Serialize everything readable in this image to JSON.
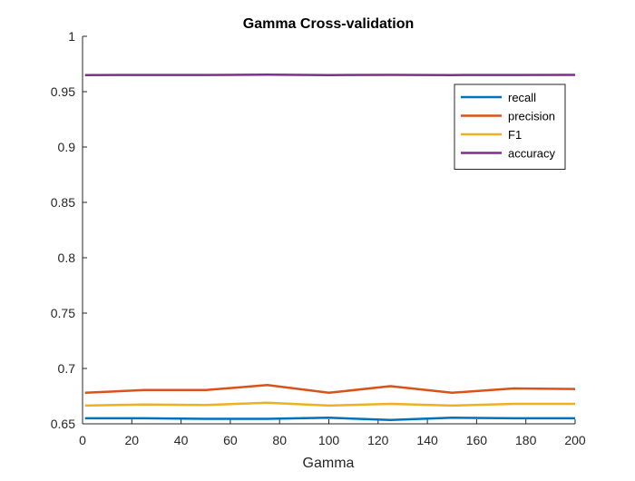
{
  "chart_data": {
    "type": "line",
    "title": "Gamma Cross-validation",
    "xlabel": "Gamma",
    "ylabel": "",
    "xlim": [
      0,
      200
    ],
    "ylim": [
      0.65,
      1
    ],
    "xticks": [
      0,
      20,
      40,
      60,
      80,
      100,
      120,
      140,
      160,
      180,
      200
    ],
    "xtick_labels": [
      "0",
      "20",
      "40",
      "60",
      "80",
      "100",
      "120",
      "140",
      "160",
      "180",
      "200"
    ],
    "yticks": [
      0.65,
      0.7,
      0.75,
      0.8,
      0.85,
      0.9,
      0.95,
      1
    ],
    "ytick_labels": [
      "0.65",
      "0.7",
      "0.75",
      "0.8",
      "0.85",
      "0.9",
      "0.95",
      "1"
    ],
    "grid": false,
    "legend_position": "top-right",
    "x": [
      1,
      25,
      50,
      75,
      100,
      125,
      150,
      175,
      200
    ],
    "series": [
      {
        "name": "recall",
        "color": "#0072BD",
        "values": [
          0.655,
          0.655,
          0.6545,
          0.6545,
          0.6555,
          0.6535,
          0.6555,
          0.655,
          0.655
        ]
      },
      {
        "name": "precision",
        "color": "#D95319",
        "values": [
          0.678,
          0.6805,
          0.6805,
          0.685,
          0.678,
          0.684,
          0.678,
          0.682,
          0.6815
        ]
      },
      {
        "name": "F1",
        "color": "#EDB120",
        "values": [
          0.6665,
          0.6675,
          0.667,
          0.669,
          0.6665,
          0.668,
          0.6665,
          0.668,
          0.668
        ]
      },
      {
        "name": "accuracy",
        "color": "#7E2F8E",
        "values": [
          0.965,
          0.9651,
          0.9651,
          0.9653,
          0.965,
          0.9652,
          0.965,
          0.9651,
          0.9652
        ]
      }
    ]
  }
}
